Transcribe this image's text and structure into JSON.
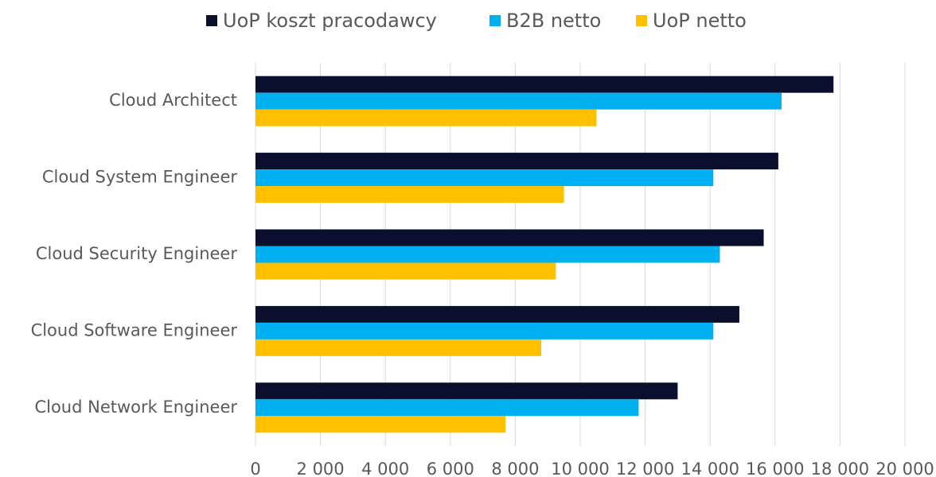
{
  "chart_data": {
    "type": "hbar",
    "categories": [
      "Cloud Architect",
      "Cloud System Engineer",
      "Cloud Security Engineer",
      "Cloud Software Engineer",
      "Cloud Network Engineer"
    ],
    "series": [
      {
        "name": "UoP koszt pracodawcy",
        "color": "#0a0f2e",
        "values": [
          17800,
          16100,
          15650,
          14900,
          13000
        ]
      },
      {
        "name": "B2B netto",
        "color": "#00b0f0",
        "values": [
          16200,
          14100,
          14300,
          14100,
          11800
        ]
      },
      {
        "name": "UoP netto",
        "color": "#ffc000",
        "values": [
          10500,
          9500,
          9250,
          8800,
          7700
        ]
      }
    ],
    "xlim": [
      0,
      20000
    ],
    "xticks": [
      0,
      {
        "value": 2000,
        "label": "2 000"
      },
      {
        "value": 4000,
        "label": "4 000"
      },
      {
        "value": 6000,
        "label": "6 000"
      },
      {
        "value": 8000,
        "label": "8 000"
      },
      {
        "value": 10000,
        "label": "10 000"
      },
      {
        "value": 12000,
        "label": "12 000"
      },
      {
        "value": 14000,
        "label": "14 000"
      },
      {
        "value": 16000,
        "label": "16 000"
      },
      {
        "value": 18000,
        "label": "18 000"
      },
      {
        "value": 20000,
        "label": "20 000"
      }
    ],
    "grid": true,
    "legend": "top"
  }
}
